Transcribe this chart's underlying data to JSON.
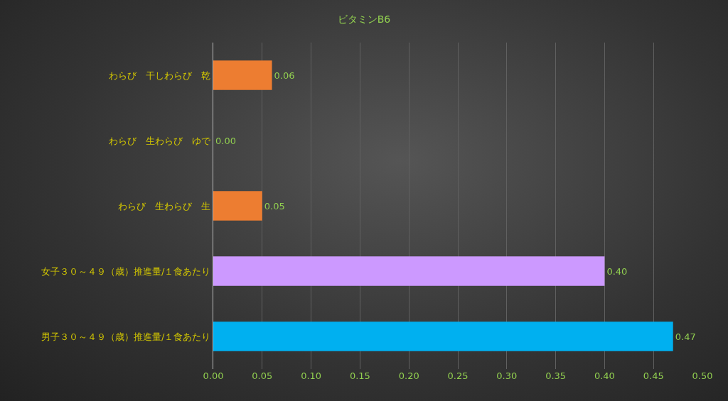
{
  "chart_data": {
    "type": "bar",
    "orientation": "horizontal",
    "title": "ビタミンB6",
    "categories": [
      "わらび　干しわらび　乾",
      "わらび　生わらび　ゆで",
      "わらび　生わらび　生",
      "女子３０～４９（歳）推進量/１食あたり",
      "男子３０～４９（歳）推進量/１食あたり"
    ],
    "values": [
      0.06,
      0.0,
      0.05,
      0.4,
      0.47
    ],
    "value_labels": [
      "0.06",
      "0.00",
      "0.05",
      "0.40",
      "0.47"
    ],
    "colors": [
      "#ed7d31",
      "#ed7d31",
      "#ed7d31",
      "#cc99ff",
      "#00b0f0"
    ],
    "xlim": [
      0,
      0.5
    ],
    "xticks": [
      {
        "value": 0,
        "label": "0.00"
      },
      {
        "value": 0.05,
        "label": "0.05"
      },
      {
        "value": 0.1,
        "label": "0.10"
      },
      {
        "value": 0.15,
        "label": "0.15"
      },
      {
        "value": 0.2,
        "label": "0.20"
      },
      {
        "value": 0.25,
        "label": "0.25"
      },
      {
        "value": 0.3,
        "label": "0.30"
      },
      {
        "value": 0.35,
        "label": "0.35"
      },
      {
        "value": 0.4,
        "label": "0.40"
      },
      {
        "value": 0.45,
        "label": "0.45"
      },
      {
        "value": 0.5,
        "label": "0.50"
      }
    ],
    "grid": "x"
  }
}
